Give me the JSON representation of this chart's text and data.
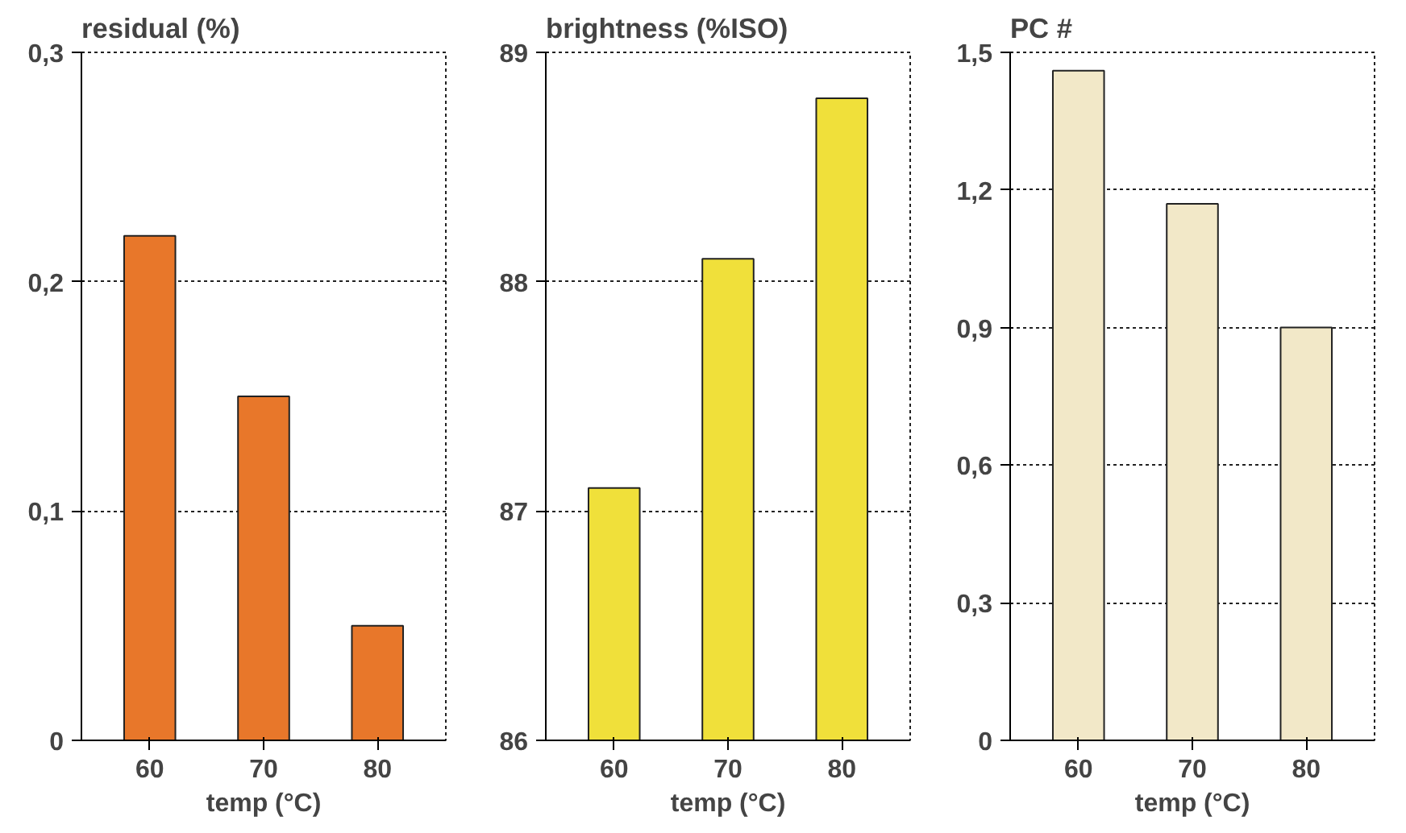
{
  "chart_data": [
    {
      "type": "bar",
      "title": "residual (%)",
      "xlabel": "temp (°C)",
      "categories": [
        "60",
        "70",
        "80"
      ],
      "values": [
        0.22,
        0.15,
        0.05
      ],
      "color": "#e8772a",
      "ylim": [
        0,
        0.3
      ],
      "yticks": [
        0,
        {
          "value": 0.1,
          "label": "0,1"
        },
        {
          "value": 0.2,
          "label": "0,2"
        },
        {
          "value": 0.3,
          "label": "0,3"
        }
      ],
      "grid": "y",
      "legend": false
    },
    {
      "type": "bar",
      "title": "brightness (%ISO)",
      "xlabel": "temp (°C)",
      "categories": [
        "60",
        "70",
        "80"
      ],
      "values": [
        87.1,
        88.1,
        88.8
      ],
      "color": "#f0e03a",
      "ylim": [
        86,
        89
      ],
      "yticks": [
        86,
        87,
        88,
        89
      ],
      "grid": "y",
      "legend": false
    },
    {
      "type": "bar",
      "title": "PC #",
      "xlabel": "temp (°C)",
      "categories": [
        "60",
        "70",
        "80"
      ],
      "values": [
        1.46,
        1.17,
        0.9
      ],
      "color": "#f2e8c8",
      "ylim": [
        0,
        1.5
      ],
      "yticks": [
        0,
        {
          "value": 0.3,
          "label": "0,3"
        },
        {
          "value": 0.6,
          "label": "0,6"
        },
        {
          "value": 0.9,
          "label": "0,9"
        },
        {
          "value": 1.2,
          "label": "1,2"
        },
        {
          "value": 1.5,
          "label": "1,5"
        }
      ],
      "grid": "y",
      "legend": false
    }
  ]
}
